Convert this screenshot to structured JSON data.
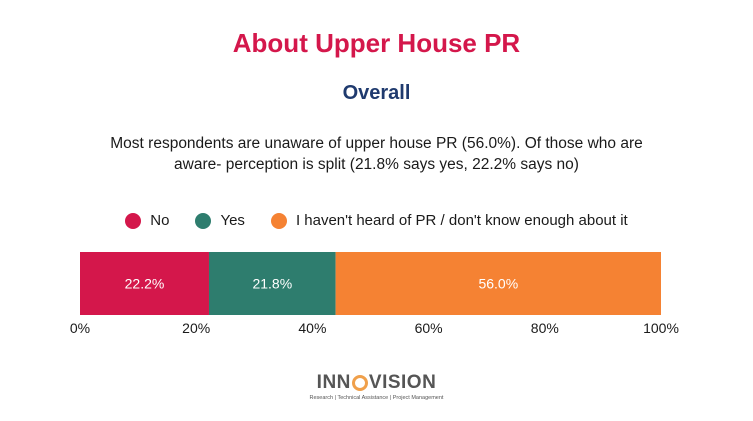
{
  "colors": {
    "title": "#d4174b",
    "subtitle": "#1f3a6e",
    "no": "#d4174b",
    "yes": "#2e7d6e",
    "not_heard": "#f58233"
  },
  "header": {
    "title": "About Upper House PR",
    "subtitle": "Overall",
    "summary": "Most respondents are unaware of upper house PR (56.0%). Of those who are aware- perception is split (21.8% says yes, 22.2% says no)"
  },
  "chart_data": {
    "type": "bar",
    "orientation": "horizontal-stacked-100",
    "categories": [
      "Overall"
    ],
    "series": [
      {
        "name": "No",
        "values": [
          22.2
        ],
        "label": "22.2%",
        "color": "#d4174b"
      },
      {
        "name": "Yes",
        "values": [
          21.8
        ],
        "label": "21.8%",
        "color": "#2e7d6e"
      },
      {
        "name": "I haven't heard of PR / don't know enough about it",
        "values": [
          56.0
        ],
        "label": "56.0%",
        "color": "#f58233"
      }
    ],
    "xlim": [
      0,
      100
    ],
    "xticks": [
      0,
      20,
      40,
      60,
      80,
      100
    ],
    "xtick_labels": [
      "0%",
      "20%",
      "40%",
      "60%",
      "80%",
      "100%"
    ],
    "legend_position": "top",
    "grid": false
  },
  "footer": {
    "logo_left": "INN",
    "logo_right": "VISION",
    "tagline": "Research | Technical Assistance | Project Management"
  }
}
